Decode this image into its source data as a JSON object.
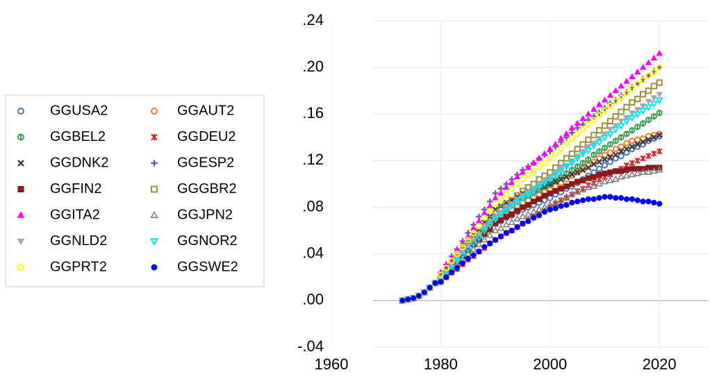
{
  "chart_data": {
    "type": "line",
    "x": [
      1973,
      1974,
      1975,
      1976,
      1977,
      1978,
      1979,
      1980,
      1981,
      1982,
      1983,
      1984,
      1985,
      1986,
      1987,
      1988,
      1989,
      1990,
      1991,
      1992,
      1993,
      1994,
      1995,
      1996,
      1997,
      1998,
      1999,
      2000,
      2001,
      2002,
      2003,
      2004,
      2005,
      2006,
      2007,
      2008,
      2009,
      2010,
      2011,
      2012,
      2013,
      2014,
      2015,
      2016,
      2017,
      2018,
      2019,
      2020
    ],
    "xlim": [
      1960,
      2029
    ],
    "xticks": [
      1960,
      1980,
      2000,
      2020
    ],
    "ylim": [
      -0.04,
      0.24
    ],
    "yticks": [
      {
        "value": -0.04,
        "label": "-.04"
      },
      {
        "value": 0,
        "label": ".00"
      },
      {
        "value": 0.04,
        "label": ".04"
      },
      {
        "value": 0.08,
        "label": ".08"
      },
      {
        "value": 0.12,
        "label": ".12"
      },
      {
        "value": 0.16,
        "label": ".16"
      },
      {
        "value": 0.2,
        "label": ".20"
      },
      {
        "value": 0.24,
        "label": ".24"
      }
    ],
    "grid": true,
    "legend": "left",
    "series": [
      {
        "name": "GGUSA2",
        "color": "#4472c4",
        "marker": "circle-open",
        "values": [
          0,
          0.001,
          0.002,
          0.004,
          0.007,
          0.011,
          0.015,
          0.019,
          0.024,
          0.029,
          0.034,
          0.039,
          0.044,
          0.048,
          0.053,
          0.057,
          0.062,
          0.066,
          0.068,
          0.071,
          0.073,
          0.076,
          0.078,
          0.08,
          0.082,
          0.084,
          0.086,
          0.088,
          0.091,
          0.093,
          0.096,
          0.098,
          0.101,
          0.104,
          0.107,
          0.11,
          0.113,
          0.116,
          0.119,
          0.122,
          0.124,
          0.127,
          0.13,
          0.132,
          0.134,
          0.137,
          0.139,
          0.141
        ]
      },
      {
        "name": "GGAUT2",
        "color": "#ed7d31",
        "marker": "circle-open",
        "values": [
          0,
          0.001,
          0.002,
          0.004,
          0.007,
          0.011,
          0.015,
          0.02,
          0.025,
          0.03,
          0.036,
          0.041,
          0.046,
          0.051,
          0.056,
          0.06,
          0.065,
          0.07,
          0.073,
          0.076,
          0.078,
          0.081,
          0.084,
          0.086,
          0.088,
          0.091,
          0.093,
          0.095,
          0.098,
          0.101,
          0.104,
          0.107,
          0.11,
          0.113,
          0.116,
          0.119,
          0.122,
          0.125,
          0.127,
          0.13,
          0.132,
          0.135,
          0.137,
          0.138,
          0.139,
          0.141,
          0.142,
          0.143
        ]
      },
      {
        "name": "GGBEL2",
        "color": "#3a9a4f",
        "marker": "circle-bar",
        "values": [
          0,
          0.001,
          0.002,
          0.004,
          0.007,
          0.011,
          0.015,
          0.02,
          0.025,
          0.03,
          0.036,
          0.041,
          0.046,
          0.051,
          0.056,
          0.062,
          0.067,
          0.072,
          0.075,
          0.078,
          0.082,
          0.085,
          0.088,
          0.09,
          0.093,
          0.095,
          0.098,
          0.1,
          0.103,
          0.106,
          0.109,
          0.112,
          0.115,
          0.118,
          0.121,
          0.125,
          0.128,
          0.131,
          0.134,
          0.137,
          0.14,
          0.143,
          0.146,
          0.149,
          0.152,
          0.155,
          0.158,
          0.161
        ]
      },
      {
        "name": "GGDEU2",
        "color": "#d62728",
        "marker": "star",
        "values": [
          0,
          0.001,
          0.002,
          0.004,
          0.007,
          0.011,
          0.015,
          0.016,
          0.02,
          0.024,
          0.027,
          0.031,
          0.035,
          0.038,
          0.042,
          0.045,
          0.049,
          0.052,
          0.055,
          0.058,
          0.06,
          0.063,
          0.066,
          0.069,
          0.072,
          0.074,
          0.077,
          0.08,
          0.083,
          0.086,
          0.088,
          0.091,
          0.094,
          0.096,
          0.099,
          0.101,
          0.104,
          0.106,
          0.108,
          0.111,
          0.113,
          0.116,
          0.118,
          0.12,
          0.122,
          0.124,
          0.126,
          0.128
        ]
      },
      {
        "name": "GGDNK2",
        "color": "#404040",
        "marker": "x",
        "values": [
          0,
          0.001,
          0.002,
          0.004,
          0.007,
          0.011,
          0.015,
          0.021,
          0.027,
          0.033,
          0.038,
          0.044,
          0.05,
          0.056,
          0.061,
          0.067,
          0.072,
          0.078,
          0.081,
          0.084,
          0.086,
          0.089,
          0.092,
          0.094,
          0.095,
          0.097,
          0.098,
          0.1,
          0.102,
          0.104,
          0.106,
          0.108,
          0.11,
          0.112,
          0.114,
          0.117,
          0.119,
          0.121,
          0.123,
          0.125,
          0.128,
          0.13,
          0.132,
          0.134,
          0.136,
          0.138,
          0.14,
          0.142
        ]
      },
      {
        "name": "GGESP2",
        "color": "#7e57a8",
        "marker": "plus",
        "values": [
          0,
          0.001,
          0.002,
          0.004,
          0.007,
          0.011,
          0.015,
          0.024,
          0.031,
          0.038,
          0.044,
          0.051,
          0.058,
          0.065,
          0.072,
          0.078,
          0.085,
          0.092,
          0.096,
          0.1,
          0.104,
          0.108,
          0.112,
          0.115,
          0.118,
          0.122,
          0.125,
          0.128,
          0.132,
          0.136,
          0.14,
          0.144,
          0.148,
          0.151,
          0.155,
          0.158,
          0.161,
          0.165,
          0.169,
          0.172,
          0.176,
          0.179,
          0.183,
          0.186,
          0.19,
          0.193,
          0.197,
          0.2
        ]
      },
      {
        "name": "GGFIN2",
        "color": "#8b1a1a",
        "marker": "square",
        "values": [
          0,
          0.001,
          0.002,
          0.004,
          0.007,
          0.011,
          0.015,
          0.018,
          0.023,
          0.028,
          0.033,
          0.038,
          0.043,
          0.048,
          0.052,
          0.057,
          0.061,
          0.066,
          0.069,
          0.072,
          0.074,
          0.077,
          0.08,
          0.082,
          0.085,
          0.087,
          0.09,
          0.092,
          0.094,
          0.096,
          0.098,
          0.1,
          0.102,
          0.103,
          0.105,
          0.106,
          0.108,
          0.109,
          0.11,
          0.111,
          0.111,
          0.112,
          0.113,
          0.113,
          0.113,
          0.114,
          0.114,
          0.114
        ]
      },
      {
        "name": "GGGBR2",
        "color": "#9c8f3a",
        "marker": "square-open",
        "values": [
          0,
          0.001,
          0.002,
          0.004,
          0.007,
          0.011,
          0.015,
          0.02,
          0.026,
          0.031,
          0.037,
          0.042,
          0.048,
          0.053,
          0.059,
          0.064,
          0.07,
          0.075,
          0.079,
          0.083,
          0.086,
          0.09,
          0.094,
          0.097,
          0.1,
          0.104,
          0.107,
          0.11,
          0.114,
          0.118,
          0.122,
          0.126,
          0.13,
          0.134,
          0.138,
          0.142,
          0.146,
          0.15,
          0.154,
          0.158,
          0.162,
          0.166,
          0.17,
          0.173,
          0.177,
          0.18,
          0.184,
          0.187
        ]
      },
      {
        "name": "GGITA2",
        "color": "#ff00ff",
        "marker": "triangle",
        "values": [
          0,
          0.001,
          0.002,
          0.004,
          0.007,
          0.011,
          0.015,
          0.024,
          0.03,
          0.036,
          0.043,
          0.049,
          0.055,
          0.062,
          0.068,
          0.075,
          0.081,
          0.088,
          0.092,
          0.097,
          0.101,
          0.106,
          0.11,
          0.114,
          0.118,
          0.122,
          0.126,
          0.13,
          0.134,
          0.139,
          0.143,
          0.148,
          0.152,
          0.156,
          0.16,
          0.164,
          0.168,
          0.172,
          0.176,
          0.18,
          0.184,
          0.188,
          0.192,
          0.196,
          0.2,
          0.204,
          0.208,
          0.212
        ]
      },
      {
        "name": "GGJPN2",
        "color": "#808080",
        "marker": "triangle-open",
        "values": [
          0,
          0.001,
          0.002,
          0.004,
          0.007,
          0.011,
          0.015,
          0.017,
          0.022,
          0.026,
          0.031,
          0.035,
          0.04,
          0.044,
          0.048,
          0.052,
          0.056,
          0.06,
          0.062,
          0.065,
          0.067,
          0.07,
          0.072,
          0.074,
          0.076,
          0.078,
          0.08,
          0.082,
          0.084,
          0.086,
          0.089,
          0.091,
          0.093,
          0.095,
          0.097,
          0.098,
          0.1,
          0.102,
          0.103,
          0.104,
          0.106,
          0.107,
          0.108,
          0.109,
          0.11,
          0.11,
          0.111,
          0.112
        ]
      },
      {
        "name": "GGNLD2",
        "color": "#a6a6a6",
        "marker": "triangle-down",
        "values": [
          0,
          0.001,
          0.002,
          0.004,
          0.007,
          0.011,
          0.015,
          0.02,
          0.025,
          0.031,
          0.036,
          0.042,
          0.047,
          0.052,
          0.057,
          0.063,
          0.068,
          0.073,
          0.076,
          0.08,
          0.083,
          0.087,
          0.09,
          0.093,
          0.096,
          0.099,
          0.102,
          0.105,
          0.109,
          0.113,
          0.116,
          0.12,
          0.124,
          0.128,
          0.132,
          0.135,
          0.139,
          0.143,
          0.147,
          0.15,
          0.154,
          0.157,
          0.161,
          0.164,
          0.167,
          0.171,
          0.174,
          0.177
        ]
      },
      {
        "name": "GGNOR2",
        "color": "#00e5ff",
        "marker": "triangle-down-open",
        "values": [
          0,
          0.001,
          0.002,
          0.004,
          0.007,
          0.011,
          0.015,
          0.018,
          0.023,
          0.028,
          0.034,
          0.039,
          0.044,
          0.049,
          0.054,
          0.06,
          0.065,
          0.07,
          0.074,
          0.077,
          0.081,
          0.084,
          0.088,
          0.091,
          0.094,
          0.098,
          0.101,
          0.104,
          0.108,
          0.111,
          0.115,
          0.118,
          0.122,
          0.126,
          0.129,
          0.133,
          0.136,
          0.14,
          0.143,
          0.147,
          0.15,
          0.154,
          0.157,
          0.16,
          0.163,
          0.166,
          0.169,
          0.172
        ]
      },
      {
        "name": "GGPRT2",
        "color": "#ffff00",
        "marker": "circle-open",
        "values": [
          0,
          0.001,
          0.002,
          0.004,
          0.007,
          0.011,
          0.015,
          0.022,
          0.028,
          0.034,
          0.04,
          0.046,
          0.052,
          0.058,
          0.064,
          0.071,
          0.077,
          0.083,
          0.087,
          0.091,
          0.096,
          0.1,
          0.104,
          0.108,
          0.111,
          0.115,
          0.118,
          0.122,
          0.126,
          0.13,
          0.135,
          0.139,
          0.143,
          0.147,
          0.151,
          0.155,
          0.159,
          0.163,
          0.167,
          0.171,
          0.174,
          0.178,
          0.182,
          0.186,
          0.189,
          0.193,
          0.196,
          0.2
        ]
      },
      {
        "name": "GGSWE2",
        "color": "#0000ff",
        "marker": "circle",
        "values": [
          0,
          0.001,
          0.002,
          0.004,
          0.007,
          0.011,
          0.015,
          0.016,
          0.02,
          0.024,
          0.028,
          0.032,
          0.036,
          0.039,
          0.042,
          0.046,
          0.049,
          0.052,
          0.055,
          0.058,
          0.06,
          0.063,
          0.066,
          0.068,
          0.071,
          0.073,
          0.076,
          0.078,
          0.079,
          0.081,
          0.082,
          0.084,
          0.085,
          0.086,
          0.087,
          0.087,
          0.088,
          0.089,
          0.089,
          0.088,
          0.088,
          0.087,
          0.087,
          0.086,
          0.085,
          0.085,
          0.084,
          0.083
        ]
      }
    ]
  }
}
